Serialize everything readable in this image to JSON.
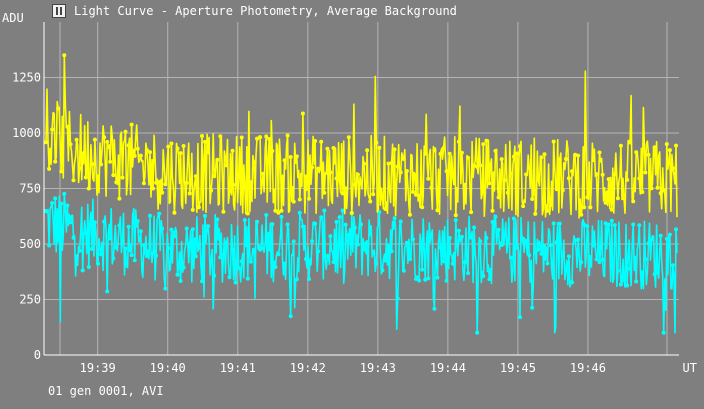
{
  "window": {
    "title": "Light Curve - Aperture Photometry, Average Background",
    "icon": "app-logo-icon"
  },
  "footer": {
    "text": "01 gen 0001, AVI"
  },
  "colors": {
    "background": "#7f7f7f",
    "grid": "#b4b4b4",
    "axis": "#ffffff",
    "series_target": "#ffff00",
    "series_comparison": "#00ffff"
  },
  "chart_data": {
    "type": "line",
    "xlabel": "UT",
    "ylabel": "ADU",
    "ylim": [
      0,
      1500
    ],
    "yticks": [
      0,
      250,
      500,
      750,
      1000,
      1250
    ],
    "xlim": [
      "19:38:14",
      "19:47:18"
    ],
    "xticks": [
      "19:39",
      "19:40",
      "19:41",
      "19:42",
      "19:43",
      "19:44",
      "19:45",
      "19:46"
    ],
    "grid": true,
    "series": [
      {
        "color": "#ffff00",
        "typical_range": [
          600,
          1000
        ],
        "peak": 1350,
        "trend": [
          [
            0,
            980
          ],
          [
            0.05,
            920
          ],
          [
            0.2,
            820
          ],
          [
            0.5,
            810
          ],
          [
            0.75,
            800
          ],
          [
            1,
            790
          ]
        ]
      },
      {
        "color": "#00ffff",
        "typical_range": [
          350,
          700
        ],
        "min": 150,
        "trend": [
          [
            0,
            600
          ],
          [
            0.05,
            560
          ],
          [
            0.2,
            470
          ],
          [
            0.5,
            500
          ],
          [
            0.75,
            470
          ],
          [
            1,
            450
          ]
        ]
      }
    ]
  }
}
